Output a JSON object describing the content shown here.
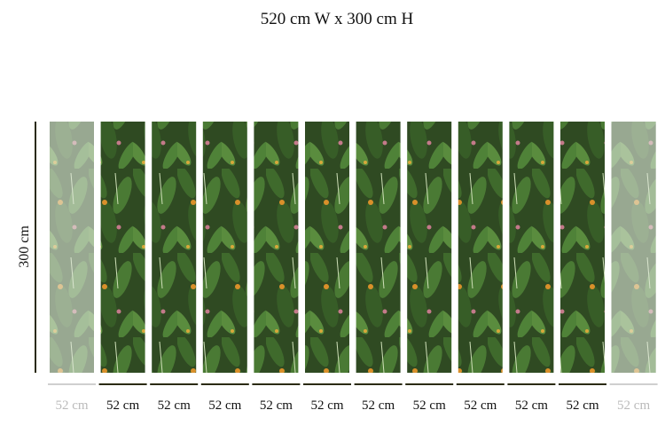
{
  "header": {
    "title": "520 cm W x 300 cm H"
  },
  "height_label": "300 cm",
  "panels": [
    {
      "label": "52 cm",
      "faded": true
    },
    {
      "label": "52 cm",
      "faded": false
    },
    {
      "label": "52 cm",
      "faded": false
    },
    {
      "label": "52 cm",
      "faded": false
    },
    {
      "label": "52 cm",
      "faded": false
    },
    {
      "label": "52 cm",
      "faded": false
    },
    {
      "label": "52 cm",
      "faded": false
    },
    {
      "label": "52 cm",
      "faded": false
    },
    {
      "label": "52 cm",
      "faded": false
    },
    {
      "label": "52 cm",
      "faded": false
    },
    {
      "label": "52 cm",
      "faded": false
    },
    {
      "label": "52 cm",
      "faded": true
    }
  ]
}
